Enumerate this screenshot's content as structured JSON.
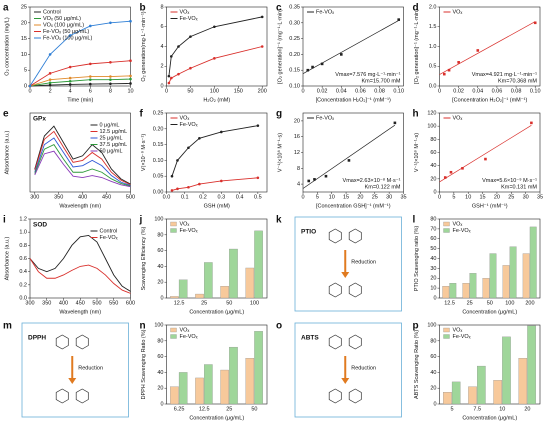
{
  "chart_data": [
    {
      "type": "line",
      "label": "a",
      "xlabel": "Time (min)",
      "ylabel": "O₂ concentration (mg/L)",
      "x": [
        0,
        2,
        4,
        6,
        8,
        10
      ],
      "xlim": [
        0,
        10
      ],
      "xticks": [
        0,
        2,
        4,
        6,
        8,
        10
      ],
      "ylim": [
        0,
        25
      ],
      "yticks": [
        0,
        5,
        10,
        15,
        20,
        25
      ],
      "markers": true,
      "legend": "upper left",
      "series": [
        {
          "name": "Control",
          "color": "#222222",
          "values": [
            0,
            0.3,
            0.5,
            0.6,
            0.7,
            0.8
          ]
        },
        {
          "name": "VOₓ (50 μg/mL)",
          "color": "#2e9a3a",
          "values": [
            0,
            1,
            1.5,
            2,
            2,
            2.2
          ]
        },
        {
          "name": "VOₓ (100 μg/mL)",
          "color": "#e08a2a",
          "values": [
            0,
            2,
            2.5,
            3,
            3,
            3.2
          ]
        },
        {
          "name": "Fe-VOₓ (50 μg/mL)",
          "color": "#d9302c",
          "values": [
            0,
            4,
            6,
            7,
            7.5,
            8
          ]
        },
        {
          "name": "Fe-VOₓ (100 μg/mL)",
          "color": "#2f7fd6",
          "values": [
            0,
            10,
            16,
            19,
            20,
            20.5
          ]
        }
      ]
    },
    {
      "type": "line",
      "label": "b",
      "xlabel": "H₂O₂ (mM)",
      "ylabel": "O₂ generation(mg·L⁻¹·min⁻¹)",
      "x": [
        5,
        10,
        25,
        50,
        100,
        200
      ],
      "xlim": [
        0,
        210
      ],
      "xticks": [
        0,
        50,
        100,
        150,
        200
      ],
      "ylim": [
        0,
        8
      ],
      "yticks": [
        0,
        2,
        4,
        6,
        8
      ],
      "markers": true,
      "legend": "upper left",
      "series": [
        {
          "name": "VOₓ",
          "color": "#d9302c",
          "values": [
            0.3,
            0.8,
            1.2,
            1.8,
            2.8,
            4
          ]
        },
        {
          "name": "Fe-VOₓ",
          "color": "#222222",
          "values": [
            1,
            3,
            4,
            5,
            6,
            7
          ]
        }
      ]
    },
    {
      "type": "scatter",
      "label": "c",
      "xlabel": "[Concentration H₂O₂]⁻¹ (mM⁻¹)",
      "ylabel": "[O₂ generation]⁻¹ (mg⁻¹·L·min)",
      "xlim": [
        0,
        0.105
      ],
      "xticks": [
        0,
        0.02,
        0.04,
        0.06,
        0.08,
        {
          "value": 0.1,
          "label": "0.10"
        }
      ],
      "ylim": [
        0.1,
        0.35
      ],
      "yticks": [
        {
          "value": 0.1,
          "label": "0.10"
        },
        0.15,
        {
          "value": 0.2,
          "label": "0.20"
        },
        0.25,
        {
          "value": 0.3,
          "label": "0.30"
        },
        0.35
      ],
      "fit": true,
      "legend": "upper left",
      "notes": [
        "Vmax=7.576 mg·L⁻¹·min⁻¹",
        "Km=15.700 mM"
      ],
      "series": [
        {
          "name": "Fe-VOₓ",
          "color": "#222222",
          "x": [
            0.005,
            0.01,
            0.02,
            0.04,
            0.1
          ],
          "values": [
            0.15,
            0.16,
            0.17,
            0.2,
            0.31
          ]
        }
      ]
    },
    {
      "type": "scatter",
      "label": "d",
      "xlabel": "[Concentration H₂O₂]⁻¹ (mM⁻¹)",
      "ylabel": "[O₂ generation]⁻¹ (mg⁻¹·L·min)",
      "xlim": [
        0,
        0.105
      ],
      "xticks": [
        0,
        0.02,
        0.04,
        0.06,
        0.08,
        {
          "value": 0.1,
          "label": "0.10"
        }
      ],
      "ylim": [
        0,
        2
      ],
      "yticks": [
        {
          "value": 0,
          "label": "0.0"
        },
        0.5,
        {
          "value": 1,
          "label": "1.0"
        },
        1.5,
        {
          "value": 2,
          "label": "2.0"
        }
      ],
      "fit": true,
      "legend": "upper left",
      "notes": [
        "Vmax=4.921 mg·L⁻¹·min⁻¹",
        "Km=70.368 mM"
      ],
      "series": [
        {
          "name": "VOₓ",
          "color": "#d9302c",
          "x": [
            0.005,
            0.01,
            0.02,
            0.04,
            0.1
          ],
          "values": [
            0.3,
            0.4,
            0.6,
            0.9,
            1.6
          ]
        }
      ]
    },
    {
      "type": "line",
      "label": "e",
      "tag": "GPx",
      "xlabel": "Wavelength (nm)",
      "ylabel": "Absorbance (a.u.)",
      "x": [
        300,
        320,
        340,
        360,
        380,
        400,
        420,
        440,
        460,
        480,
        500
      ],
      "xlim": [
        290,
        500
      ],
      "xticks": [
        300,
        350,
        400,
        450,
        500
      ],
      "ylim": [
        0,
        1.2
      ],
      "yticks": [],
      "legend": "upper right",
      "series": [
        {
          "name": "0 μg/mL",
          "color": "#222222",
          "values": [
            0.35,
            0.85,
            1.0,
            0.75,
            0.5,
            0.55,
            0.72,
            0.6,
            0.35,
            0.2,
            0.12
          ]
        },
        {
          "name": "12.5 μg/mL",
          "color": "#d9302c",
          "values": [
            0.33,
            0.8,
            0.92,
            0.68,
            0.45,
            0.48,
            0.6,
            0.5,
            0.3,
            0.18,
            0.11
          ]
        },
        {
          "name": "25 μg/mL",
          "color": "#2f57d6",
          "values": [
            0.3,
            0.72,
            0.82,
            0.6,
            0.38,
            0.4,
            0.48,
            0.4,
            0.25,
            0.15,
            0.1
          ]
        },
        {
          "name": "37.5 μg/mL",
          "color": "#2e9a3a",
          "values": [
            0.28,
            0.65,
            0.72,
            0.5,
            0.3,
            0.3,
            0.35,
            0.3,
            0.2,
            0.13,
            0.09
          ]
        },
        {
          "name": "50 μg/mL",
          "color": "#8a3ab9",
          "values": [
            0.26,
            0.58,
            0.62,
            0.42,
            0.24,
            0.22,
            0.25,
            0.22,
            0.16,
            0.11,
            0.08
          ]
        }
      ]
    },
    {
      "type": "line",
      "label": "f",
      "xlabel": "GSH (mM)",
      "ylabel": "V(×10⁻⁸ M·s⁻¹)",
      "x": [
        0.03,
        0.06,
        0.12,
        0.18,
        0.3,
        0.5
      ],
      "xlim": [
        0,
        0.55
      ],
      "xticks": [
        {
          "value": 0,
          "label": "0.0"
        },
        0.1,
        0.2,
        0.3,
        0.4,
        0.5
      ],
      "ylim": [
        0,
        0.25
      ],
      "yticks": [
        {
          "value": 0,
          "label": "0.00"
        },
        0.05,
        {
          "value": 0.1,
          "label": "0.10"
        },
        0.15,
        {
          "value": 0.2,
          "label": "0.20"
        },
        0.25
      ],
      "markers": true,
      "legend": "upper left",
      "series": [
        {
          "name": "VOₓ",
          "color": "#d9302c",
          "values": [
            0.005,
            0.01,
            0.015,
            0.025,
            0.035,
            0.045
          ]
        },
        {
          "name": "Fe-VOₓ",
          "color": "#222222",
          "values": [
            0.05,
            0.1,
            0.14,
            0.17,
            0.19,
            0.21
          ]
        }
      ]
    },
    {
      "type": "scatter",
      "label": "g",
      "xlabel": "[Concentration GSH]⁻¹ (mM⁻¹)",
      "ylabel": "V⁻¹(×10⁸ M⁻¹·s)",
      "xlim": [
        0,
        35
      ],
      "xticks": [
        0,
        5,
        10,
        15,
        20,
        25,
        30,
        35
      ],
      "ylim": [
        2,
        22
      ],
      "yticks": [
        4,
        8,
        12,
        16,
        20
      ],
      "fit": true,
      "legend": "upper left",
      "notes": [
        "Vmax=2.63×10⁻⁸ M·s⁻¹",
        "Km=0.122 mM"
      ],
      "series": [
        {
          "name": "Fe-VOₓ",
          "color": "#222222",
          "x": [
            2,
            4,
            8,
            16,
            32
          ],
          "values": [
            4.8,
            5.2,
            6,
            10,
            19.5
          ]
        }
      ]
    },
    {
      "type": "scatter",
      "label": "h",
      "xlabel": "GSH⁻¹ (mM⁻¹)",
      "ylabel": "V⁻¹(×10⁸ M⁻¹·s)",
      "xlim": [
        0,
        35
      ],
      "xticks": [
        0,
        5,
        10,
        15,
        20,
        25,
        30,
        35
      ],
      "ylim": [
        0,
        120
      ],
      "yticks": [
        0,
        20,
        40,
        60,
        80,
        100,
        120
      ],
      "fit": true,
      "legend": "upper left",
      "notes": [
        "Vmax=5.6×10⁻⁹ M·s⁻¹",
        "Km=0.131 mM"
      ],
      "series": [
        {
          "name": "VOₓ",
          "color": "#d9302c",
          "x": [
            2,
            4,
            8,
            16,
            32
          ],
          "values": [
            22,
            30,
            36,
            50,
            105
          ]
        }
      ]
    },
    {
      "type": "line",
      "label": "i",
      "tag": "SOD",
      "xlabel": "Wavelength (nm)",
      "ylabel": "Absorbance (a.u.)",
      "x": [
        300,
        325,
        350,
        375,
        400,
        425,
        450,
        475,
        500,
        525,
        550,
        575,
        600
      ],
      "xlim": [
        300,
        600
      ],
      "xticks": [
        300,
        350,
        400,
        450,
        500,
        550,
        600
      ],
      "ylim": [
        0,
        1.2
      ],
      "yticks": [
        {
          "value": 0,
          "label": "0.0"
        },
        0.2,
        0.4,
        0.6,
        0.8,
        {
          "value": 1,
          "label": "1.0"
        },
        1.2
      ],
      "legend": "upper right",
      "series": [
        {
          "name": "Control",
          "color": "#222222",
          "values": [
            0.6,
            0.45,
            0.4,
            0.45,
            0.6,
            0.8,
            0.93,
            0.95,
            0.85,
            0.6,
            0.35,
            0.18,
            0.1
          ]
        },
        {
          "name": "Fe-VOₓ",
          "color": "#d9302c",
          "values": [
            0.6,
            0.4,
            0.3,
            0.3,
            0.35,
            0.42,
            0.48,
            0.5,
            0.45,
            0.35,
            0.22,
            0.12,
            0.07
          ]
        }
      ]
    },
    {
      "type": "bar",
      "label": "j",
      "xlabel": "Concentration (μg/mL)",
      "ylabel": "Scavenging Efficiency (%)",
      "categories": [
        "12.5",
        "25",
        "50",
        "100"
      ],
      "ylim": [
        0,
        100
      ],
      "yticks": [
        0,
        20,
        40,
        60,
        80,
        100
      ],
      "legend": "upper left",
      "series": [
        {
          "name": "VOₓ",
          "color": "#f7c99b",
          "values": [
            2,
            5,
            15,
            38
          ]
        },
        {
          "name": "Fe-VOₓ",
          "color": "#9fd69a",
          "values": [
            23,
            45,
            62,
            85
          ]
        }
      ]
    },
    {
      "type": "diagram",
      "label": "k",
      "labels": [
        "PTIO",
        "Reduction"
      ]
    },
    {
      "type": "bar",
      "label": "l",
      "xlabel": "Concentration (μg/mL)",
      "ylabel": "PTIO Scavenging ratio (%)",
      "categories": [
        "12.5",
        "25",
        "50",
        "100",
        "200"
      ],
      "ylim": [
        0,
        80
      ],
      "yticks": [
        0,
        10,
        20,
        30,
        40,
        50,
        60,
        70,
        80
      ],
      "legend": "upper left",
      "series": [
        {
          "name": "VOₓ",
          "color": "#f7c99b",
          "values": [
            12,
            15,
            20,
            33,
            45
          ]
        },
        {
          "name": "Fe-VOₓ",
          "color": "#9fd69a",
          "values": [
            15,
            25,
            45,
            52,
            72
          ]
        }
      ]
    },
    {
      "type": "diagram",
      "label": "m",
      "labels": [
        "DPPH",
        "Reduction"
      ]
    },
    {
      "type": "bar",
      "label": "n",
      "xlabel": "Concentration (μg/mL)",
      "ylabel": "DPPH Scavenging Ratio (%)",
      "categories": [
        "6.25",
        "12.5",
        "25",
        "50"
      ],
      "ylim": [
        0,
        100
      ],
      "yticks": [
        0,
        20,
        40,
        60,
        80,
        100
      ],
      "legend": "upper left",
      "series": [
        {
          "name": "VOₓ",
          "color": "#f7c99b",
          "values": [
            22,
            33,
            43,
            58
          ]
        },
        {
          "name": "Fe-VOₓ",
          "color": "#9fd69a",
          "values": [
            40,
            50,
            72,
            92
          ]
        }
      ]
    },
    {
      "type": "diagram",
      "label": "o",
      "labels": [
        "ABTS",
        "Reduction"
      ]
    },
    {
      "type": "bar",
      "label": "p",
      "xlabel": "Concentration (μg/mL)",
      "ylabel": "ABTS Scavenging Ratio (%)",
      "categories": [
        "5",
        "7.5",
        "10",
        "20"
      ],
      "ylim": [
        0,
        100
      ],
      "yticks": [
        0,
        20,
        40,
        60,
        80,
        100
      ],
      "legend": "upper left",
      "series": [
        {
          "name": "VOₓ",
          "color": "#f7c99b",
          "values": [
            15,
            22,
            30,
            58
          ]
        },
        {
          "name": "Fe-VOₓ",
          "color": "#9fd69a",
          "values": [
            28,
            48,
            85,
            99
          ]
        }
      ]
    }
  ]
}
